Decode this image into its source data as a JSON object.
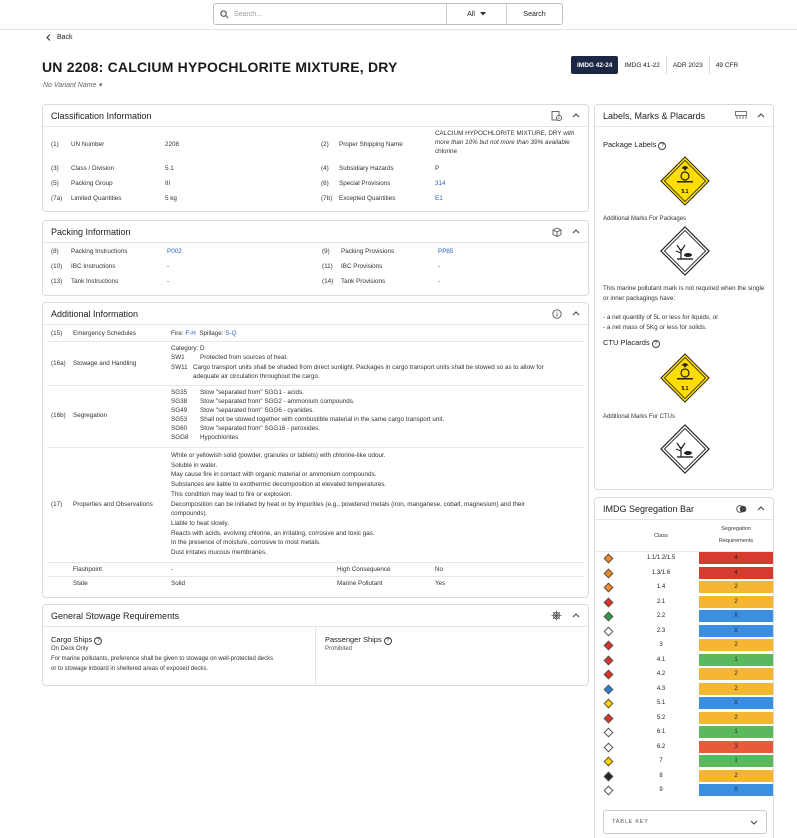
{
  "search": {
    "placeholder": "Search...",
    "filter": "All",
    "button": "Search"
  },
  "back": "Back",
  "title": "UN 2208: CALCIUM HYPOCHLORITE MIXTURE, DRY",
  "variant": "No Variant Name",
  "versions": [
    "IMDG 42-24",
    "IMDG 41-22",
    "ADR 2023",
    "49 CFR"
  ],
  "classification": {
    "title": "Classification Information",
    "rows": [
      {
        "n": "(1)",
        "label": "UN Number",
        "value": "2208"
      },
      {
        "n": "(3)",
        "label": "Class / Division",
        "value": "5.1"
      },
      {
        "n": "(5)",
        "label": "Packing Group",
        "value": "III"
      },
      {
        "n": "(7a)",
        "label": "Limited Quantities",
        "value": "5 kg"
      }
    ],
    "right": [
      {
        "n": "(2)",
        "label": "Proper Shipping Name",
        "value": "CALCIUM HYPOCHLORITE MIXTURE, DRY",
        "extra": "with more than 10% but not more than 39% available",
        "tail": "chlorine"
      },
      {
        "n": "(4)",
        "label": "Subsidiary Hazards",
        "value": "P"
      },
      {
        "n": "(6)",
        "label": "Special Provisions",
        "value": "314"
      },
      {
        "n": "(7b)",
        "label": "Excepted Quantities",
        "value": "E1"
      }
    ]
  },
  "packing": {
    "title": "Packing Information",
    "left": [
      {
        "n": "(8)",
        "label": "Packing Instructions",
        "value": "P002"
      },
      {
        "n": "(10)",
        "label": "IBC Instructions",
        "value": "-"
      },
      {
        "n": "(13)",
        "label": "Tank Instructions",
        "value": "-"
      }
    ],
    "right": [
      {
        "n": "(9)",
        "label": "Packing Provisions",
        "value": "PP85"
      },
      {
        "n": "(11)",
        "label": "IBC Provisions",
        "value": "-"
      },
      {
        "n": "(14)",
        "label": "Tank Provisions",
        "value": "-"
      }
    ]
  },
  "additional": {
    "title": "Additional Information",
    "ems": {
      "n": "(15)",
      "label": "Emergency Schedules",
      "fire": "Fire:",
      "fire_code": "F-H",
      "spill": "Spillage:",
      "spill_code": "S-Q"
    },
    "stowage": {
      "n": "(16a)",
      "label": "Stowage and Handling",
      "category": "Category: D",
      "items": [
        {
          "code": "SW1",
          "text": "Protected from sources of heat."
        },
        {
          "code": "SW11",
          "text": "Cargo transport units shall be shaded from direct sunlight. Packages in cargo transport units shall be stowed so as to allow for"
        },
        {
          "code": "",
          "text": "adequate air circulation throughout the cargo."
        }
      ]
    },
    "segregation": {
      "n": "(16b)",
      "label": "Segregation",
      "items": [
        {
          "code": "SG35",
          "text": "Stow \"separated from\" SGG1 - acids."
        },
        {
          "code": "SG38",
          "text": "Stow \"separated from\" SGG2 - ammonium compounds."
        },
        {
          "code": "SG49",
          "text": "Stow \"separated from\" SGG6 - cyanides."
        },
        {
          "code": "SG53",
          "text": "Shall not be stowed together with combustible material in the same cargo transport unit."
        },
        {
          "code": "SG60",
          "text": "Stow \"separated from\" SGG16 - peroxides."
        },
        {
          "code": "SGG8",
          "text": "Hypochlorites"
        }
      ]
    },
    "properties": {
      "n": "(17)",
      "label": "Properties and Observations",
      "lines": [
        "White or yellowish solid (powder, granules or tablets) with chlorine-like odour.",
        "Soluble in water.",
        "May cause fire in contact with organic material or ammonium compounds.",
        "Substances are liable to exothermic decomposition at elevated temperatures.",
        "This condition may lead to fire or explosion.",
        "Decomposition can be initiated by heat or by impurities (e.g., powdered metals (iron, manganese, cobalt, magnesium) and their",
        "compounds).",
        "Liable to heat slowly.",
        "Reacts with acids, evolving chlorine, an irritating, corrosive and toxic gas.",
        "In the presence of moisture, corrosive to most metals.",
        "Dust irritates mucous membranes."
      ]
    },
    "flashpoint": {
      "label": "Flashpoint",
      "value": "-"
    },
    "high_consequence": {
      "label": "High Consequence",
      "value": "No"
    },
    "state": {
      "label": "State",
      "value": "Solid"
    },
    "marine": {
      "label": "Marine Pollutant",
      "value": "Yes"
    }
  },
  "stowage_req": {
    "title": "General Stowage Requirements",
    "cargo": {
      "title": "Cargo Ships",
      "sub": "On Deck Only",
      "text1": "For marine pollutants, preference shall be given to stowage on well-protected decks",
      "text2": "or to stowage inboard in sheltered areas of exposed decks."
    },
    "passenger": {
      "title": "Passenger Ships",
      "sub": "Prohibited"
    }
  },
  "labels": {
    "title": "Labels, Marks & Placards",
    "package_labels": "Package Labels",
    "additional_marks_packages": "Additional Marks For Packages",
    "marine_note": "This marine pollutant mark is not required when the single or inner packagings have:",
    "marine_b1": "- a net quantity of 5L or less for liquids; or",
    "marine_b2": "- a net mass of 5Kg or less for solids.",
    "ctu_placards": "CTU Placards",
    "additional_marks_ctus": "Additional Marks For CTUs",
    "label_text": "5.1"
  },
  "segregation_bar": {
    "title": "IMDG Segregation Bar",
    "col_class": "Class",
    "col_req1": "Segregation",
    "col_req2": "Requirements",
    "rows": [
      {
        "cls": "1.1/1.2/1.5",
        "req": "4",
        "color": "#d63b2f",
        "icon": "#f08a24"
      },
      {
        "cls": "1.3/1.6",
        "req": "4",
        "color": "#d63b2f",
        "icon": "#f08a24"
      },
      {
        "cls": "1.4",
        "req": "2",
        "color": "#f5b731",
        "icon": "#f08a24"
      },
      {
        "cls": "2.1",
        "req": "2",
        "color": "#f5b731",
        "icon": "#e0302a"
      },
      {
        "cls": "2.2",
        "req": "X",
        "color": "#3a8fe0",
        "icon": "#2e9b4a"
      },
      {
        "cls": "2.3",
        "req": "X",
        "color": "#3a8fe0",
        "icon": "#ffffff"
      },
      {
        "cls": "3",
        "req": "2",
        "color": "#f5b731",
        "icon": "#e0302a"
      },
      {
        "cls": "4.1",
        "req": "1",
        "color": "#5cb85c",
        "icon": "#e0302a"
      },
      {
        "cls": "4.2",
        "req": "2",
        "color": "#f5b731",
        "icon": "#e0302a"
      },
      {
        "cls": "4.3",
        "req": "2",
        "color": "#f5b731",
        "icon": "#2f7fd6"
      },
      {
        "cls": "5.1",
        "req": "X",
        "color": "#3a8fe0",
        "icon": "#ffd600"
      },
      {
        "cls": "5.2",
        "req": "2",
        "color": "#f5b731",
        "icon": "#e0302a"
      },
      {
        "cls": "6.1",
        "req": "1",
        "color": "#5cb85c",
        "icon": "#ffffff"
      },
      {
        "cls": "6.2",
        "req": "3",
        "color": "#e85a3a",
        "icon": "#ffffff"
      },
      {
        "cls": "7",
        "req": "1",
        "color": "#5cb85c",
        "icon": "#ffd600"
      },
      {
        "cls": "8",
        "req": "2",
        "color": "#f5b731",
        "icon": "#222222"
      },
      {
        "cls": "9",
        "req": "X",
        "color": "#3a8fe0",
        "icon": "#ffffff"
      }
    ],
    "table_key": "TABLE KEY"
  }
}
